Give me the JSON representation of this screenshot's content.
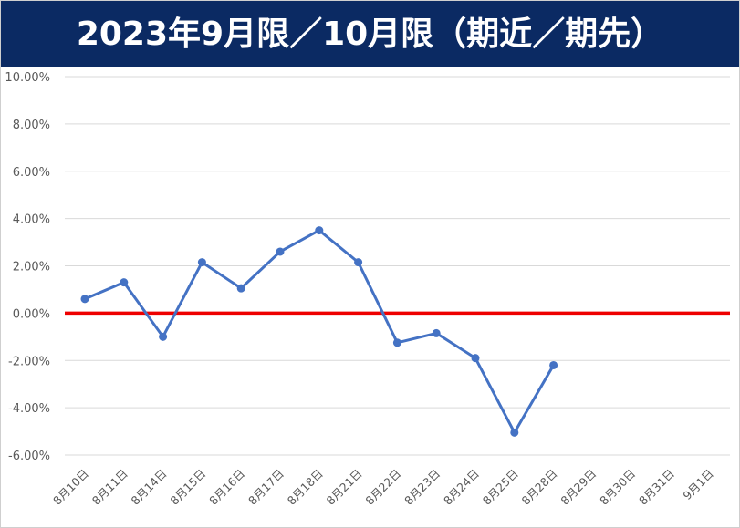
{
  "header": {
    "title": "2023年9月限／10月限（期近／期先）"
  },
  "chart_data": {
    "type": "line",
    "title": "2023年9月限／10月限（期近／期先）",
    "xlabel": "",
    "ylabel": "",
    "categories": [
      "8月10日",
      "8月11日",
      "8月14日",
      "8月15日",
      "8月16日",
      "8月17日",
      "8月18日",
      "8月21日",
      "8月22日",
      "8月23日",
      "8月24日",
      "8月25日",
      "8月28日",
      "8月29日",
      "8月30日",
      "8月31日",
      "9月1日"
    ],
    "series": [
      {
        "values": [
          0.6,
          1.3,
          -1.0,
          2.15,
          1.05,
          2.6,
          3.5,
          2.15,
          -1.25,
          -0.85,
          -1.9,
          -5.05,
          -2.2,
          null,
          null,
          null,
          null
        ]
      }
    ],
    "yticks": [
      "10.00%",
      "8.00%",
      "6.00%",
      "4.00%",
      "2.00%",
      "0.00%",
      "-2.00%",
      "-4.00%",
      "-6.00%"
    ],
    "ylim": [
      -6,
      10
    ],
    "reference_line": {
      "y": 0,
      "color": "#ee0000"
    },
    "grid": true,
    "line_color": "#4472c4"
  }
}
